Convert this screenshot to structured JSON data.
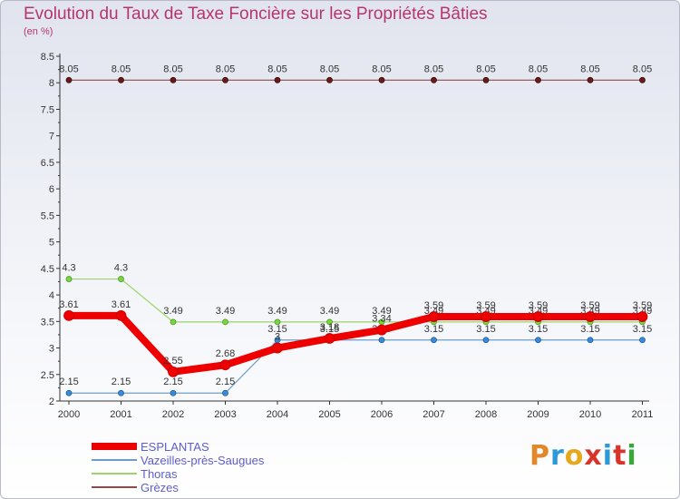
{
  "header": {
    "title": "Evolution du Taux de Taxe Foncière sur les Propriétés Bâties",
    "unit": "(en %)"
  },
  "brand": {
    "text": "Proxiti"
  },
  "colors": {
    "esplantas": "#ee0000",
    "vazeilles": "#6e9ec8",
    "thoras": "#9ad46a",
    "grezes": "#8a4b4b",
    "grezes_marker": "#6b1a1a",
    "vazeilles_marker": "#3a8ad8",
    "thoras_marker": "#79d640",
    "title": "#b5356e",
    "legend_text": "#5d5dcf"
  },
  "chart_data": {
    "type": "line",
    "title": "Evolution du Taux de Taxe Foncière sur les Propriétés Bâties",
    "ylabel": "(en %)",
    "xlabel": "",
    "categories": [
      "2000",
      "2001",
      "2002",
      "2003",
      "2004",
      "2005",
      "2006",
      "2007",
      "2008",
      "2009",
      "2010",
      "2011"
    ],
    "ylim": [
      2,
      8.5
    ],
    "yticks": [
      "2",
      "2.5",
      "3",
      "3.5",
      "4",
      "4.5",
      "5",
      "5.5",
      "6",
      "6.5",
      "7",
      "7.5",
      "8",
      "8.5"
    ],
    "series": [
      {
        "name": "Grèzes",
        "key": "grezes",
        "values": [
          8.05,
          8.05,
          8.05,
          8.05,
          8.05,
          8.05,
          8.05,
          8.05,
          8.05,
          8.05,
          8.05,
          8.05
        ],
        "labels": [
          "8.05",
          "8.05",
          "8.05",
          "8.05",
          "8.05",
          "8.05",
          "8.05",
          "8.05",
          "8.05",
          "8.05",
          "8.05",
          "8.05"
        ]
      },
      {
        "name": "Vazeilles-près-Saugues",
        "key": "vazeilles",
        "values": [
          2.15,
          2.15,
          2.15,
          2.15,
          3.15,
          3.15,
          3.15,
          3.15,
          3.15,
          3.15,
          3.15,
          3.15
        ],
        "labels": [
          "2.15",
          "2.15",
          "2.15",
          "2.15",
          "3.15",
          "3.15",
          "3.15",
          "3.15",
          "3.15",
          "3.15",
          "3.15",
          "3.15"
        ]
      },
      {
        "name": "Thoras",
        "key": "thoras",
        "values": [
          4.3,
          4.3,
          3.49,
          3.49,
          3.49,
          3.49,
          3.49,
          3.49,
          3.49,
          3.49,
          3.49,
          3.49
        ],
        "labels": [
          "4.3",
          "4.3",
          "3.49",
          "3.49",
          "3.49",
          "3.49",
          "3.49",
          "3.49",
          "3.49",
          "3.49",
          "3.49",
          "3.49"
        ]
      },
      {
        "name": "ESPLANTAS",
        "key": "esplantas",
        "values": [
          3.61,
          3.61,
          2.55,
          2.68,
          3.0,
          3.18,
          3.34,
          3.59,
          3.59,
          3.59,
          3.59,
          3.59
        ],
        "labels": [
          "3.61",
          "3.61",
          "2.55",
          "2.68",
          "3",
          "3.18",
          "3.34",
          "3.59",
          "3.59",
          "3.59",
          "3.59",
          "3.59"
        ]
      }
    ],
    "legend": [
      {
        "name": "ESPLANTAS",
        "key": "esplantas",
        "thick": true
      },
      {
        "name": "Vazeilles-près-Saugues",
        "key": "vazeilles",
        "thick": false
      },
      {
        "name": "Thoras",
        "key": "thoras",
        "thick": false
      },
      {
        "name": "Grèzes",
        "key": "grezes",
        "thick": false
      }
    ],
    "legend_position": "bottom-left"
  }
}
